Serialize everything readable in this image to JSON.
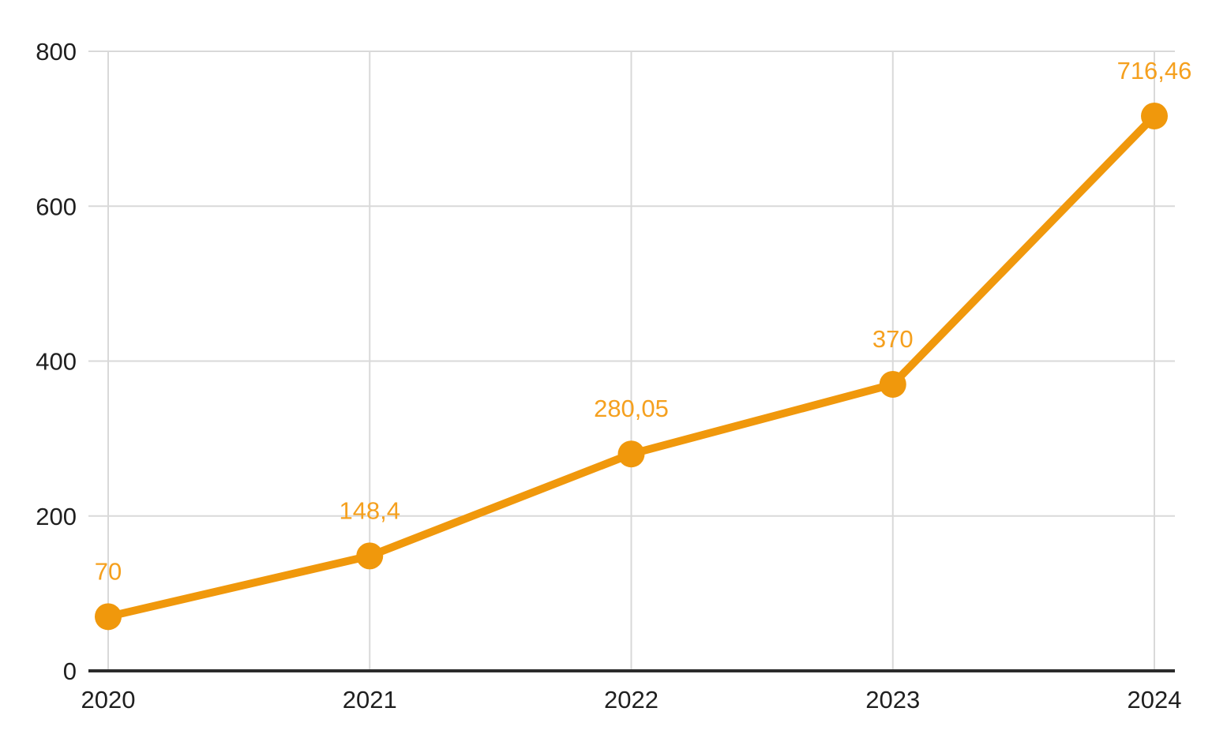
{
  "chart_data": {
    "type": "line",
    "title": "",
    "xlabel": "",
    "ylabel": "",
    "categories": [
      "2020",
      "2021",
      "2022",
      "2023",
      "2024"
    ],
    "series": [
      {
        "name": "series-1",
        "values": [
          70,
          148.4,
          280.05,
          370,
          716.46
        ],
        "point_labels": [
          "70",
          "148,4",
          "280,05",
          "370",
          "716,46"
        ]
      }
    ],
    "ylim": [
      0,
      800
    ],
    "y_ticks": [
      {
        "value": 0,
        "label": "0"
      },
      {
        "value": 200,
        "label": "200"
      },
      {
        "value": 400,
        "label": "400"
      },
      {
        "value": 600,
        "label": "600"
      },
      {
        "value": 800,
        "label": "800"
      }
    ],
    "grid": true,
    "legend_position": "none",
    "colors": {
      "series_line": "#F0980C",
      "series_point": "#F0980C",
      "point_label_text": "#F5A01E",
      "gridline": "#D9D9D9",
      "axis_baseline": "#2B2B2B",
      "tick_label_text": "#1F1F1F",
      "background": "#FFFFFF"
    }
  }
}
